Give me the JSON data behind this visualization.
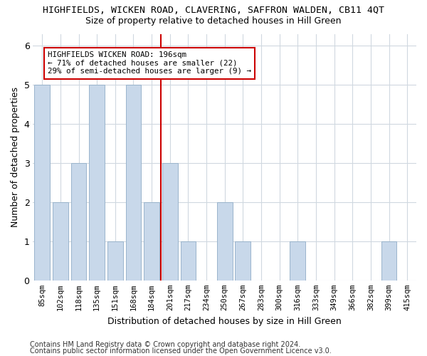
{
  "title": "HIGHFIELDS, WICKEN ROAD, CLAVERING, SAFFRON WALDEN, CB11 4QT",
  "subtitle": "Size of property relative to detached houses in Hill Green",
  "xlabel": "Distribution of detached houses by size in Hill Green",
  "ylabel": "Number of detached properties",
  "categories": [
    "85sqm",
    "102sqm",
    "118sqm",
    "135sqm",
    "151sqm",
    "168sqm",
    "184sqm",
    "201sqm",
    "217sqm",
    "234sqm",
    "250sqm",
    "267sqm",
    "283sqm",
    "300sqm",
    "316sqm",
    "333sqm",
    "349sqm",
    "366sqm",
    "382sqm",
    "399sqm",
    "415sqm"
  ],
  "values": [
    5,
    2,
    3,
    5,
    1,
    5,
    2,
    3,
    1,
    0,
    2,
    1,
    0,
    0,
    1,
    0,
    0,
    0,
    0,
    1,
    0
  ],
  "bar_color": "#c8d8ea",
  "bar_edge_color": "#9ab4cc",
  "vline_x_index": 7,
  "vline_color": "#cc0000",
  "annotation_text": "HIGHFIELDS WICKEN ROAD: 196sqm\n← 71% of detached houses are smaller (22)\n29% of semi-detached houses are larger (9) →",
  "annotation_box_color": "white",
  "annotation_box_edge": "#cc0000",
  "ylim": [
    0,
    6.3
  ],
  "yticks": [
    0,
    1,
    2,
    3,
    4,
    5,
    6
  ],
  "footer1": "Contains HM Land Registry data © Crown copyright and database right 2024.",
  "footer2": "Contains public sector information licensed under the Open Government Licence v3.0.",
  "background_color": "#ffffff",
  "plot_background": "#ffffff",
  "grid_color": "#d0d8e0"
}
